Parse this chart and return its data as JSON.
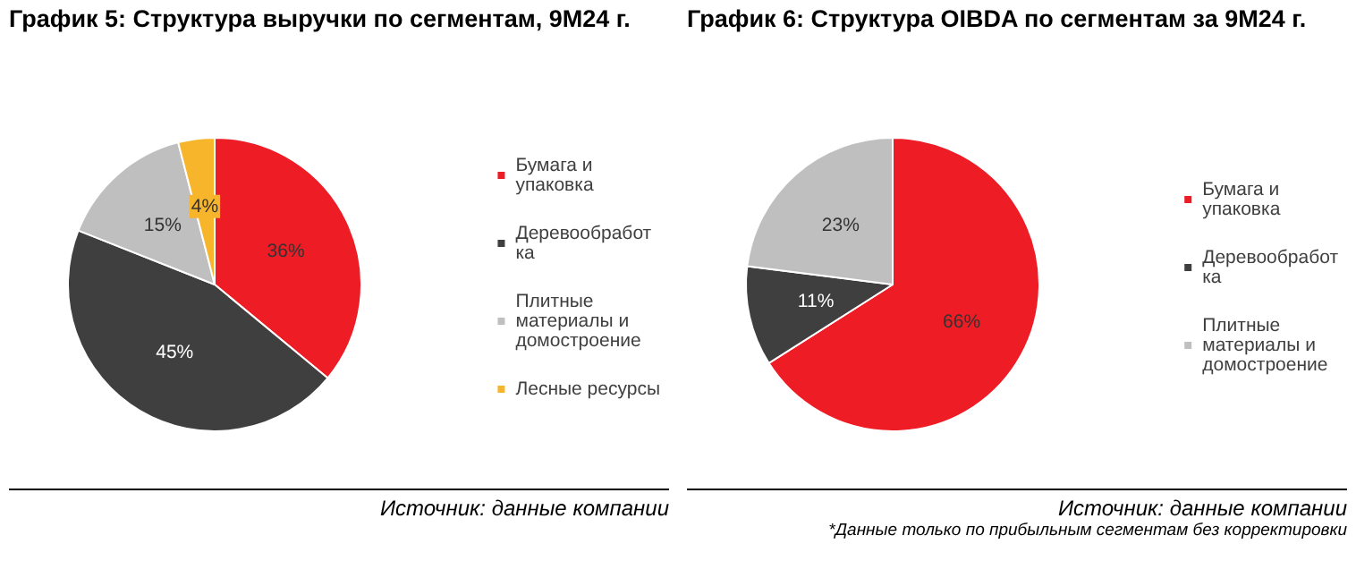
{
  "chart_data": [
    {
      "type": "pie",
      "title": "График 5: Структура выручки по сегментам, 9М24 г.",
      "categories": [
        "Бумага и упаковка",
        "Деревообработка",
        "Плитные материалы и домостроение",
        "Лесные ресурсы"
      ],
      "values": [
        36,
        45,
        15,
        4
      ],
      "colors": [
        "#ee1c25",
        "#3f3f3f",
        "#bfbfbf",
        "#f7b52c"
      ],
      "value_labels": [
        "36%",
        "45%",
        "15%",
        "4%"
      ],
      "legend": "right",
      "annotations": [
        "Источник: данные компании"
      ]
    },
    {
      "type": "pie",
      "title": "График 6: Структура OIBDA по сегментам за 9М24 г.",
      "categories": [
        "Бумага и упаковка",
        "Деревообработка",
        "Плитные материалы и домостроение"
      ],
      "values": [
        66,
        11,
        23
      ],
      "colors": [
        "#ee1c25",
        "#3f3f3f",
        "#bfbfbf"
      ],
      "value_labels": [
        "66%",
        "11%",
        "23%"
      ],
      "legend": "right",
      "annotations": [
        "Источник: данные компании",
        "*Данные только по прибыльным сегментам без корректировки"
      ]
    }
  ]
}
